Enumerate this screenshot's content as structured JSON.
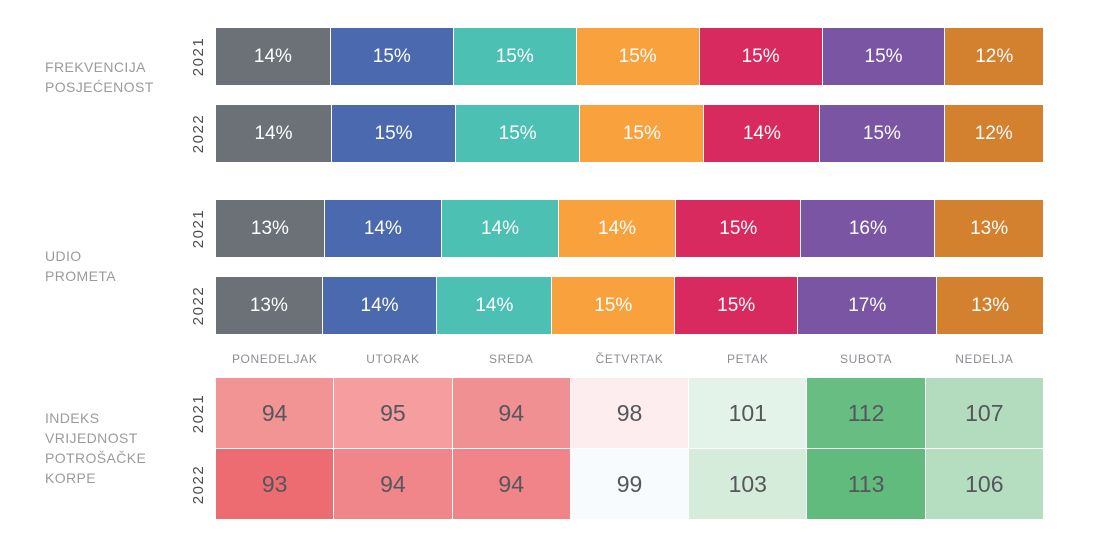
{
  "chart_data": [
    {
      "type": "bar",
      "subtype": "horizontal-stacked-percent",
      "title": "FREKVENCIJA POSJEĆENOST",
      "title_lines": [
        "FREKVENCIJA",
        "POSJEĆENOST"
      ],
      "categories": [
        "PONEDELJAK",
        "UTORAK",
        "SREDA",
        "ČETVRTAK",
        "PETAK",
        "SUBOTA",
        "NEDELJA"
      ],
      "unit": "%",
      "legend_position": "none",
      "grid": false,
      "series": [
        {
          "name": "2021",
          "values": [
            14,
            15,
            15,
            15,
            15,
            15,
            12
          ]
        },
        {
          "name": "2022",
          "values": [
            14,
            15,
            15,
            15,
            14,
            15,
            12
          ]
        }
      ],
      "segment_colors": [
        "#6b7177",
        "#4a69af",
        "#4cc0b2",
        "#f9a13c",
        "#d92a5f",
        "#7a55a3",
        "#d3802f"
      ]
    },
    {
      "type": "bar",
      "subtype": "horizontal-stacked-percent",
      "title": "UDIO PROMETA",
      "title_lines": [
        "UDIO",
        "PROMETA"
      ],
      "categories": [
        "PONEDELJAK",
        "UTORAK",
        "SREDA",
        "ČETVRTAK",
        "PETAK",
        "SUBOTA",
        "NEDELJA"
      ],
      "unit": "%",
      "legend_position": "none",
      "grid": false,
      "series": [
        {
          "name": "2021",
          "values": [
            13,
            14,
            14,
            14,
            15,
            16,
            13
          ]
        },
        {
          "name": "2022",
          "values": [
            13,
            14,
            14,
            15,
            15,
            17,
            13
          ]
        }
      ],
      "segment_colors": [
        "#6b7177",
        "#4a69af",
        "#4cc0b2",
        "#f9a13c",
        "#d92a5f",
        "#7a55a3",
        "#d3802f"
      ]
    },
    {
      "type": "heatmap",
      "title": "INDEKS VRIJEDNOST POTROŠAČKE KORPE",
      "title_lines": [
        "INDEKS",
        "VRIJEDNOST",
        "POTROŠAČKE",
        "KORPE"
      ],
      "categories": [
        "PONEDELJAK",
        "UTORAK",
        "SREDA",
        "ČETVRTAK",
        "PETAK",
        "SUBOTA",
        "NEDELJA"
      ],
      "series": [
        {
          "name": "2021",
          "values": [
            94,
            95,
            94,
            98,
            101,
            112,
            107
          ],
          "cell_colors": [
            "#f29394",
            "#f59d9f",
            "#f19092",
            "#fdedee",
            "#e4f3e9",
            "#68bd83",
            "#b2dcbd"
          ]
        },
        {
          "name": "2022",
          "values": [
            93,
            94,
            94,
            99,
            103,
            113,
            106
          ],
          "cell_colors": [
            "#ed6c72",
            "#f0868a",
            "#f08488",
            "#f8fbfd",
            "#d5ecda",
            "#60bb7d",
            "#b5ddc0"
          ]
        }
      ]
    }
  ],
  "text_colors": {
    "section_label": "#9b9b9b",
    "year_label": "#4c4c4c",
    "day_header": "#8b8f93",
    "heatmap_value": "#55575b",
    "bar_value": "#ffffff"
  }
}
